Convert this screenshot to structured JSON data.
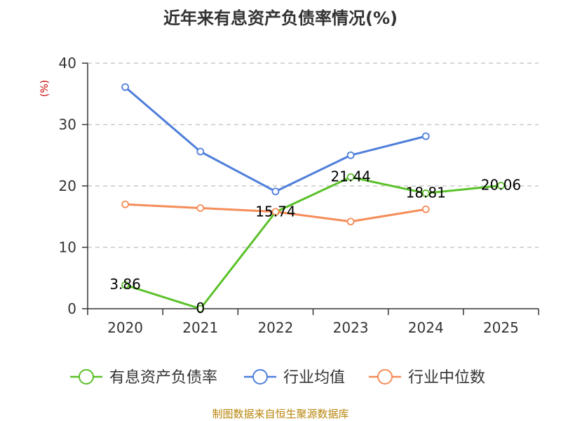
{
  "chart_data": {
    "type": "line",
    "title": "近年来有息资产负债率情况(%)",
    "ylabel": "(%)",
    "categories": [
      "2020",
      "2021",
      "2022",
      "2023",
      "2024",
      "2025"
    ],
    "ylim": [
      0,
      40
    ],
    "yticks": [
      0,
      10,
      20,
      30,
      40
    ],
    "grid": true,
    "legend_position": "bottom",
    "series": [
      {
        "name": "有息资产负债率",
        "color": "#5bc12a",
        "values": [
          3.86,
          0,
          15.74,
          21.44,
          18.81,
          20.06
        ],
        "labels": [
          "3.86",
          "0",
          "15.74",
          "21.44",
          "18.81",
          "20.06"
        ]
      },
      {
        "name": "行业均值",
        "color": "#4f7fdb",
        "values": [
          36.1,
          25.6,
          19.1,
          25.0,
          28.1,
          null
        ]
      },
      {
        "name": "行业中位数",
        "color": "#f58d59",
        "values": [
          17.0,
          16.4,
          15.8,
          14.2,
          16.2,
          null
        ]
      }
    ]
  },
  "source": "制图数据来自恒生聚源数据库"
}
